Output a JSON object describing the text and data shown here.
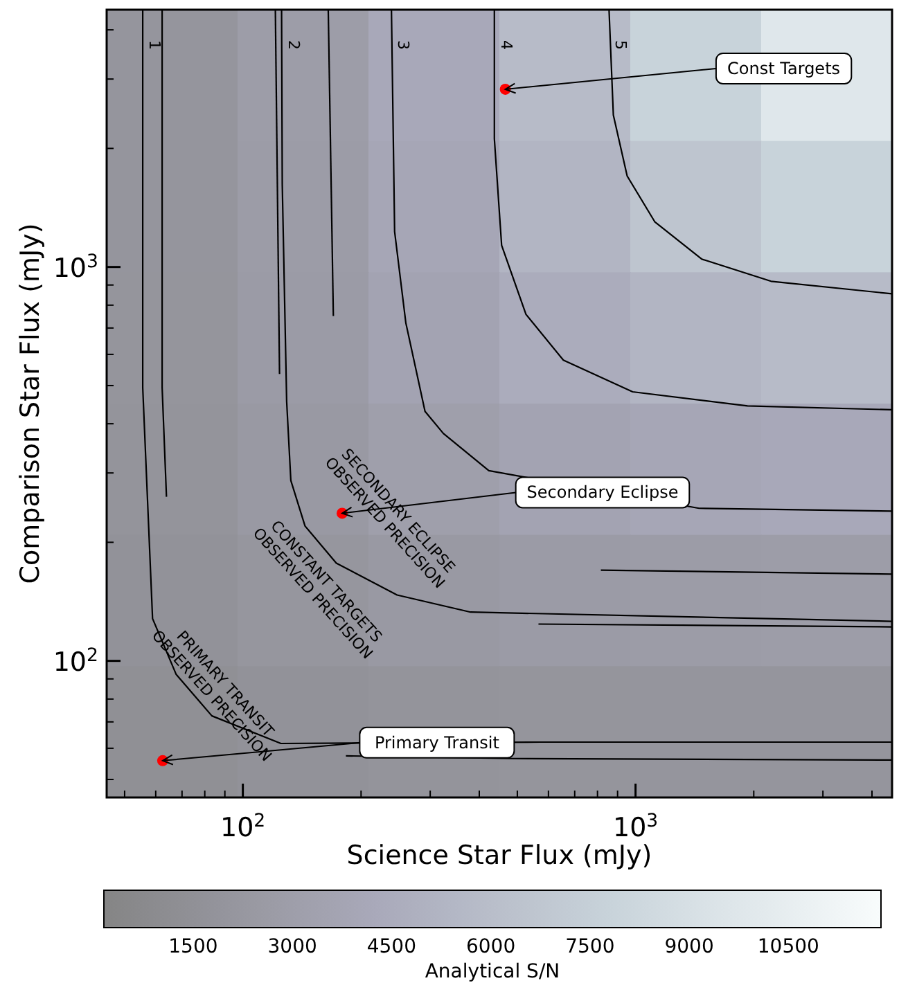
{
  "chart_data": {
    "type": "heatmap",
    "xlabel": "Science Star Flux (mJy)",
    "ylabel": "Comparison Star Flux (mJy)",
    "clabel": "Analytical S/N",
    "xlim": [
      45,
      4500
    ],
    "ylim": [
      45,
      4500
    ],
    "log": "xy",
    "grid": false,
    "xticks": [
      {
        "value": 50,
        "label": null
      },
      {
        "value": 60,
        "label": null
      },
      {
        "value": 70,
        "label": null
      },
      {
        "value": 80,
        "label": null
      },
      {
        "value": 90,
        "label": null
      },
      {
        "value": 100,
        "label": "10$^{2}$"
      },
      {
        "value": 200,
        "label": null
      },
      {
        "value": 300,
        "label": null
      },
      {
        "value": 400,
        "label": null
      },
      {
        "value": 500,
        "label": null
      },
      {
        "value": 600,
        "label": null
      },
      {
        "value": 700,
        "label": null
      },
      {
        "value": 800,
        "label": null
      },
      {
        "value": 900,
        "label": null
      },
      {
        "value": 1000,
        "label": "10$^{3}$"
      },
      {
        "value": 2000,
        "label": null
      },
      {
        "value": 3000,
        "label": null
      },
      {
        "value": 4000,
        "label": null
      }
    ],
    "yticks": [
      {
        "value": 50,
        "label": null
      },
      {
        "value": 60,
        "label": null
      },
      {
        "value": 70,
        "label": null
      },
      {
        "value": 80,
        "label": null
      },
      {
        "value": 90,
        "label": null
      },
      {
        "value": 100,
        "label": "10$^{2}$"
      },
      {
        "value": 200,
        "label": null
      },
      {
        "value": 300,
        "label": null
      },
      {
        "value": 400,
        "label": null
      },
      {
        "value": 500,
        "label": null
      },
      {
        "value": 600,
        "label": null
      },
      {
        "value": 700,
        "label": null
      },
      {
        "value": 800,
        "label": null
      },
      {
        "value": 900,
        "label": null
      },
      {
        "value": 1000,
        "label": "10$^{3}$"
      },
      {
        "value": 2000,
        "label": null
      },
      {
        "value": 3000,
        "label": null
      },
      {
        "value": 4000,
        "label": null
      }
    ],
    "clim": [
      150,
      11900
    ],
    "cticks": [
      1500,
      3000,
      4500,
      6000,
      7500,
      9000,
      10500
    ],
    "cells": [
      [
        2000,
        2890,
        4170,
        5810,
        7750,
        9790
      ],
      [
        1980,
        2820,
        3970,
        5280,
        6620,
        7750
      ],
      [
        1930,
        2680,
        3610,
        4530,
        5280,
        5810
      ],
      [
        1840,
        2450,
        3100,
        3610,
        3970,
        4170
      ],
      [
        1670,
        2090,
        2450,
        2680,
        2820,
        2890
      ],
      [
        1430,
        1670,
        1840,
        1930,
        1980,
        2000
      ]
    ],
    "series": [
      {
        "type": "line",
        "name": "1",
        "color": "#000000",
        "x": [
          55.6,
          55.6,
          58.9,
          67.6,
          83.4,
          125,
          571,
          4500
        ],
        "values": [
          4500,
          494,
          128,
          92.5,
          72.5,
          61.7,
          62.2,
          62.2
        ]
      },
      {
        "type": "line",
        "color": "#000000",
        "x": [
          183,
          485,
          4500
        ],
        "values": [
          57.4,
          56.5,
          56.0
        ]
      },
      {
        "type": "line",
        "color": "#000000",
        "x": [
          62.3,
          62.3,
          63.9
        ],
        "values": [
          4500,
          494,
          261
        ]
      },
      {
        "type": "line",
        "color": "#000000",
        "x": [
          121,
          124
        ],
        "values": [
          4500,
          535
        ]
      },
      {
        "type": "line",
        "name": "2",
        "color": "#000000",
        "x": [
          125.5,
          126,
          129.3,
          132.5,
          144,
          173,
          247,
          380,
          4500
        ],
        "values": [
          4500,
          1621,
          455,
          287,
          220,
          177,
          147,
          133,
          126
        ]
      },
      {
        "type": "line",
        "color": "#000000",
        "x": [
          566,
          4500
        ],
        "values": [
          124,
          122
        ]
      },
      {
        "type": "line",
        "color": "#000000",
        "x": [
          816,
          4500
        ],
        "values": [
          170,
          166
        ]
      },
      {
        "type": "line",
        "color": "#000000",
        "x": [
          165,
          170
        ],
        "values": [
          4500,
          751
        ]
      },
      {
        "type": "line",
        "name": "3",
        "color": "#000000",
        "x": [
          239,
          243.5,
          260,
          291,
          324,
          423,
          1451,
          4500
        ],
        "values": [
          4500,
          1230,
          722,
          430,
          378,
          304,
          244,
          240
        ]
      },
      {
        "type": "line",
        "name": "4",
        "color": "#000000",
        "x": [
          437,
          437,
          456,
          526,
          655,
          983,
          1928,
          4500
        ],
        "values": [
          4500,
          2116,
          1135,
          758,
          580,
          482,
          444,
          434
        ]
      },
      {
        "type": "line",
        "name": "5",
        "color": "#000000",
        "x": [
          856,
          878,
          952,
          1119,
          1475,
          2213,
          4500
        ],
        "values": [
          4500,
          2430,
          1702,
          1303,
          1047,
          920,
          855
        ]
      },
      {
        "type": "scatter",
        "color": "#ff0000",
        "marker": "circle",
        "x": [
          466,
          179,
          62.5
        ],
        "values": [
          2826,
          237,
          55.8
        ]
      }
    ],
    "annotations": [
      {
        "text": "Const Targets",
        "x": 466,
        "y": 2826
      },
      {
        "text": "Secondary Eclipse",
        "x": 179,
        "y": 237
      },
      {
        "text": "Primary Transit",
        "x": 62.5,
        "y": 55.8
      },
      "SECONDARY ECLIPSE\nOBSERVED PRECISION",
      "CONSTANT TARGETS\nOBSERVED PRECISION",
      "PRIMARY TRANSIT\nOBSERVED PRECISION"
    ]
  }
}
